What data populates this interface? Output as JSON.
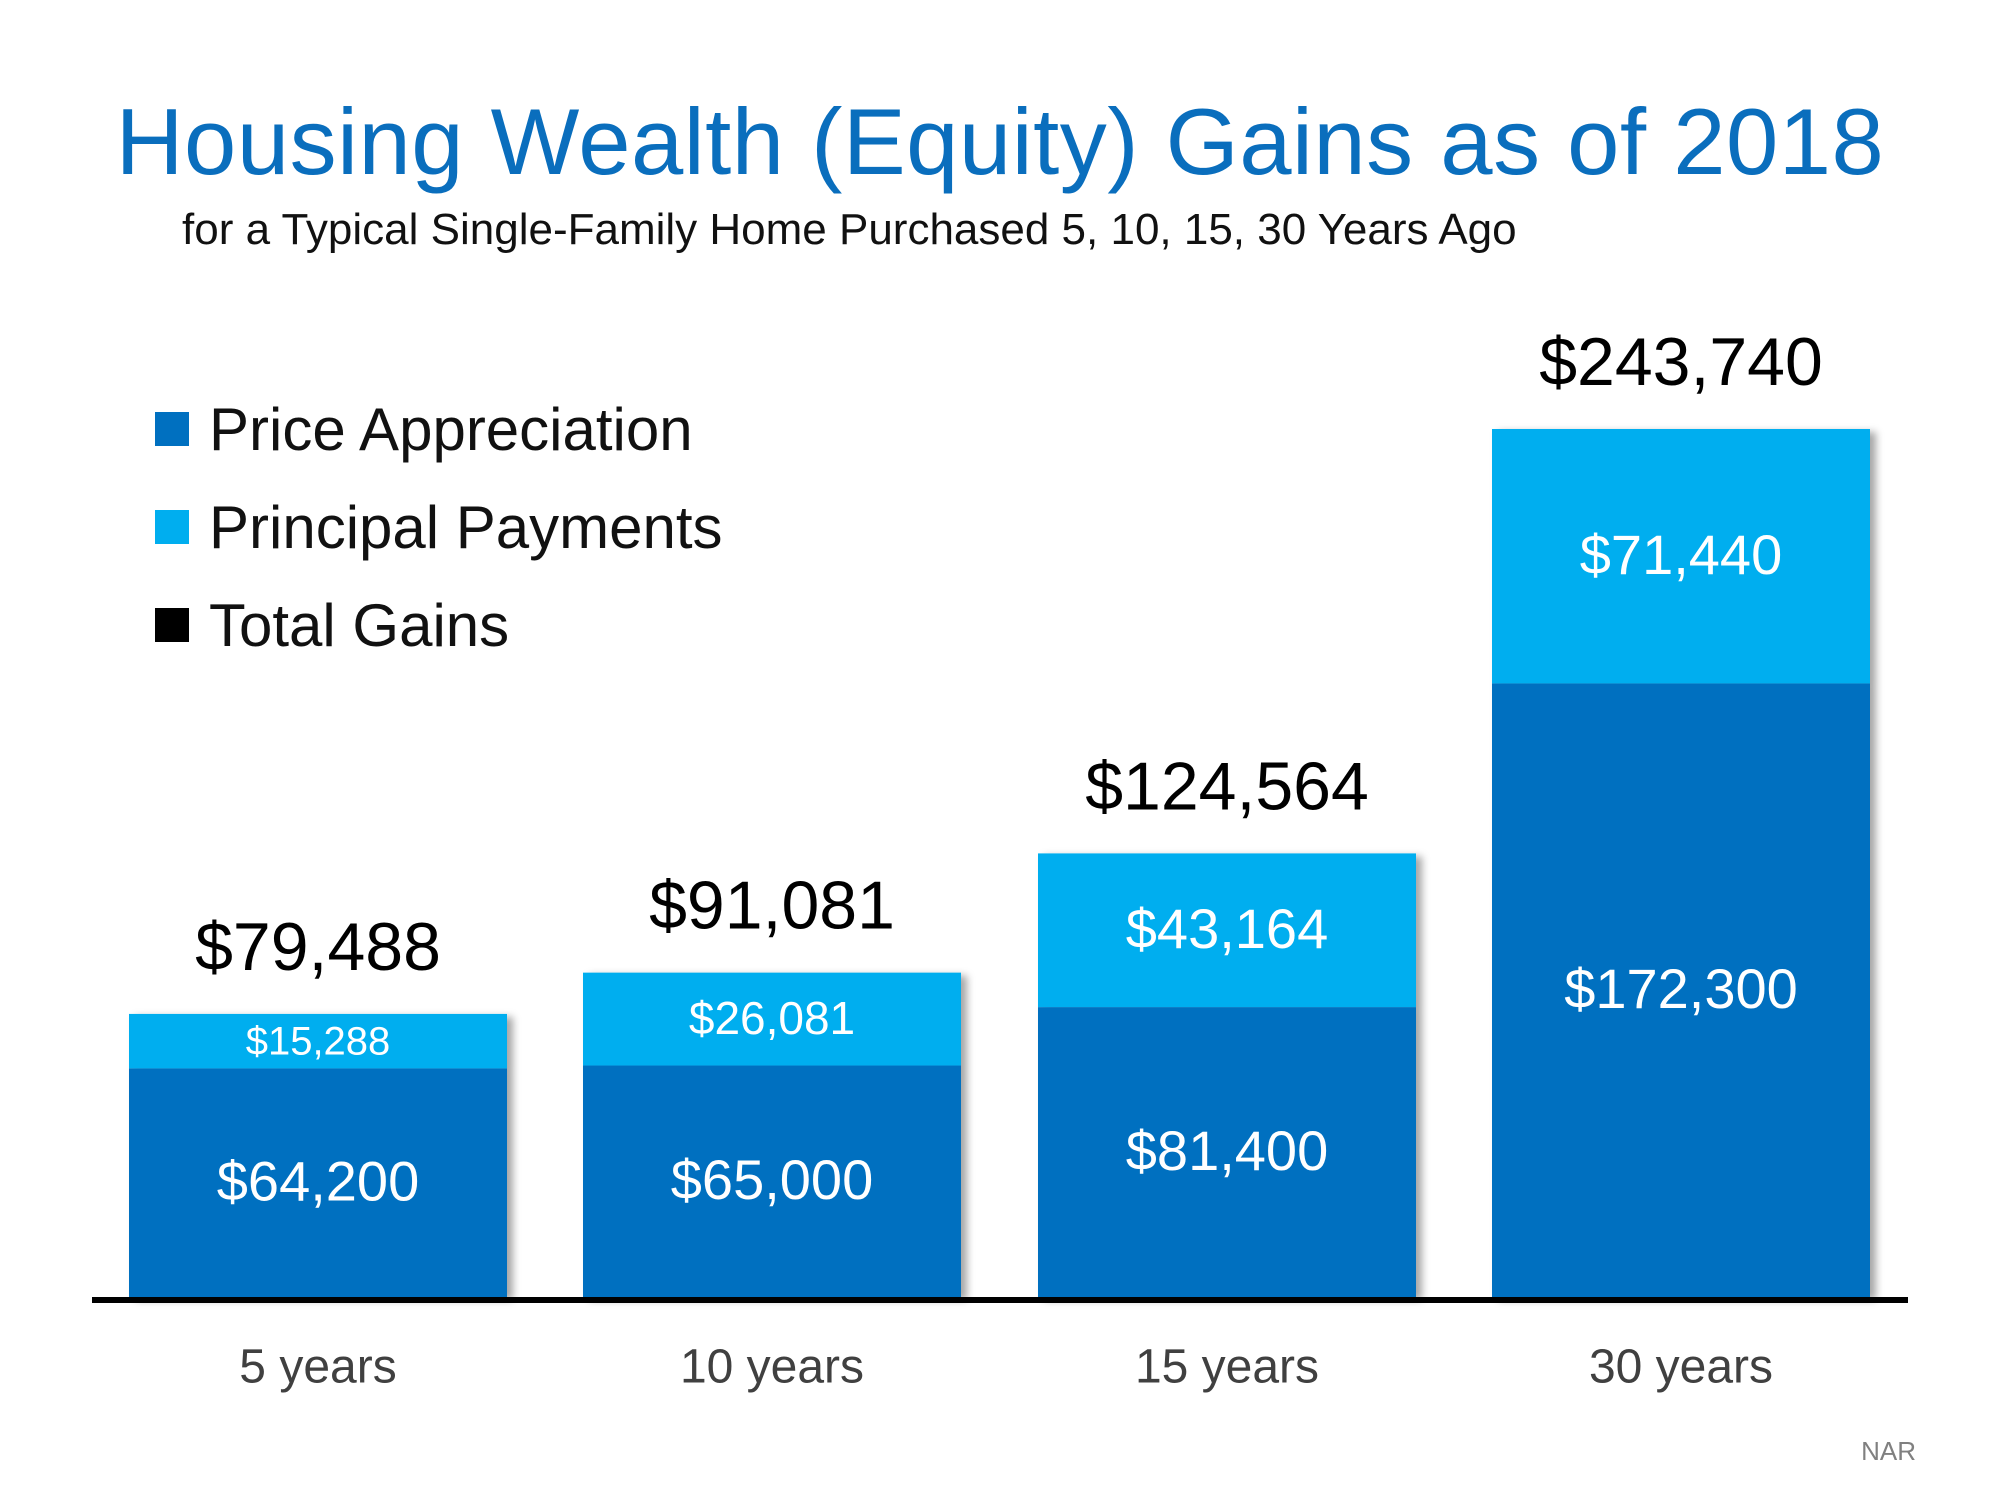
{
  "colors": {
    "price_appreciation": "#0070C0",
    "principal_payments": "#00AEEF",
    "total_gains": "#000000",
    "title": "#0A6EBD"
  },
  "source": "NAR",
  "chart_data": {
    "type": "bar",
    "stacked": true,
    "title": "Housing Wealth (Equity) Gains as of 2018",
    "subtitle": "for a Typical Single-Family Home Purchased 5, 10, 15, 30 Years Ago",
    "categories": [
      "5 years",
      "10 years",
      "15 years",
      "30 years"
    ],
    "series": [
      {
        "name": "Price Appreciation",
        "values": [
          64200,
          65000,
          81400,
          172300
        ],
        "labels": [
          "$64,200",
          "$65,000",
          "$81,400",
          "$172,300"
        ]
      },
      {
        "name": "Principal Payments",
        "values": [
          15288,
          26081,
          43164,
          71440
        ],
        "labels": [
          "$15,288",
          "$26,081",
          "$43,164",
          "$71,440"
        ]
      }
    ],
    "totals": {
      "name": "Total Gains",
      "values": [
        79488,
        91081,
        124564,
        243740
      ],
      "labels": [
        "$79,488",
        "$91,081",
        "$124,564",
        "$243,740"
      ]
    },
    "legend_position": "top-left",
    "grid": false,
    "xlabel": "",
    "ylabel": "",
    "ylim": [
      0,
      243740
    ]
  }
}
